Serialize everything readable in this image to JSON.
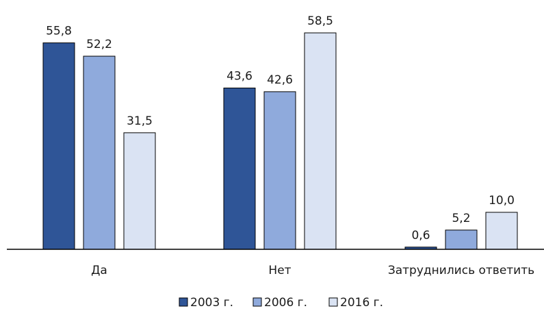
{
  "chart_data": {
    "type": "bar",
    "categories": [
      "Да",
      "Нет",
      "Затруднились ответить"
    ],
    "series": [
      {
        "name": "2003 г.",
        "values": [
          55.8,
          43.6,
          0.6
        ],
        "labels": [
          "55,8",
          "43,6",
          "0,6"
        ],
        "color": "#2f5597"
      },
      {
        "name": "2006 г.",
        "values": [
          52.2,
          42.6,
          5.2
        ],
        "labels": [
          "52,2",
          "42,6",
          "5,2"
        ],
        "color": "#8faadc"
      },
      {
        "name": "2016 г.",
        "values": [
          31.5,
          58.5,
          10.0
        ],
        "labels": [
          "31,5",
          "58,5",
          "10,0"
        ],
        "color": "#dae3f3"
      }
    ],
    "ylim": [
      0,
      58.5
    ],
    "grid": false,
    "legend_position": "bottom",
    "bar_outline_color": "#000000",
    "axis_color": "#000000"
  }
}
